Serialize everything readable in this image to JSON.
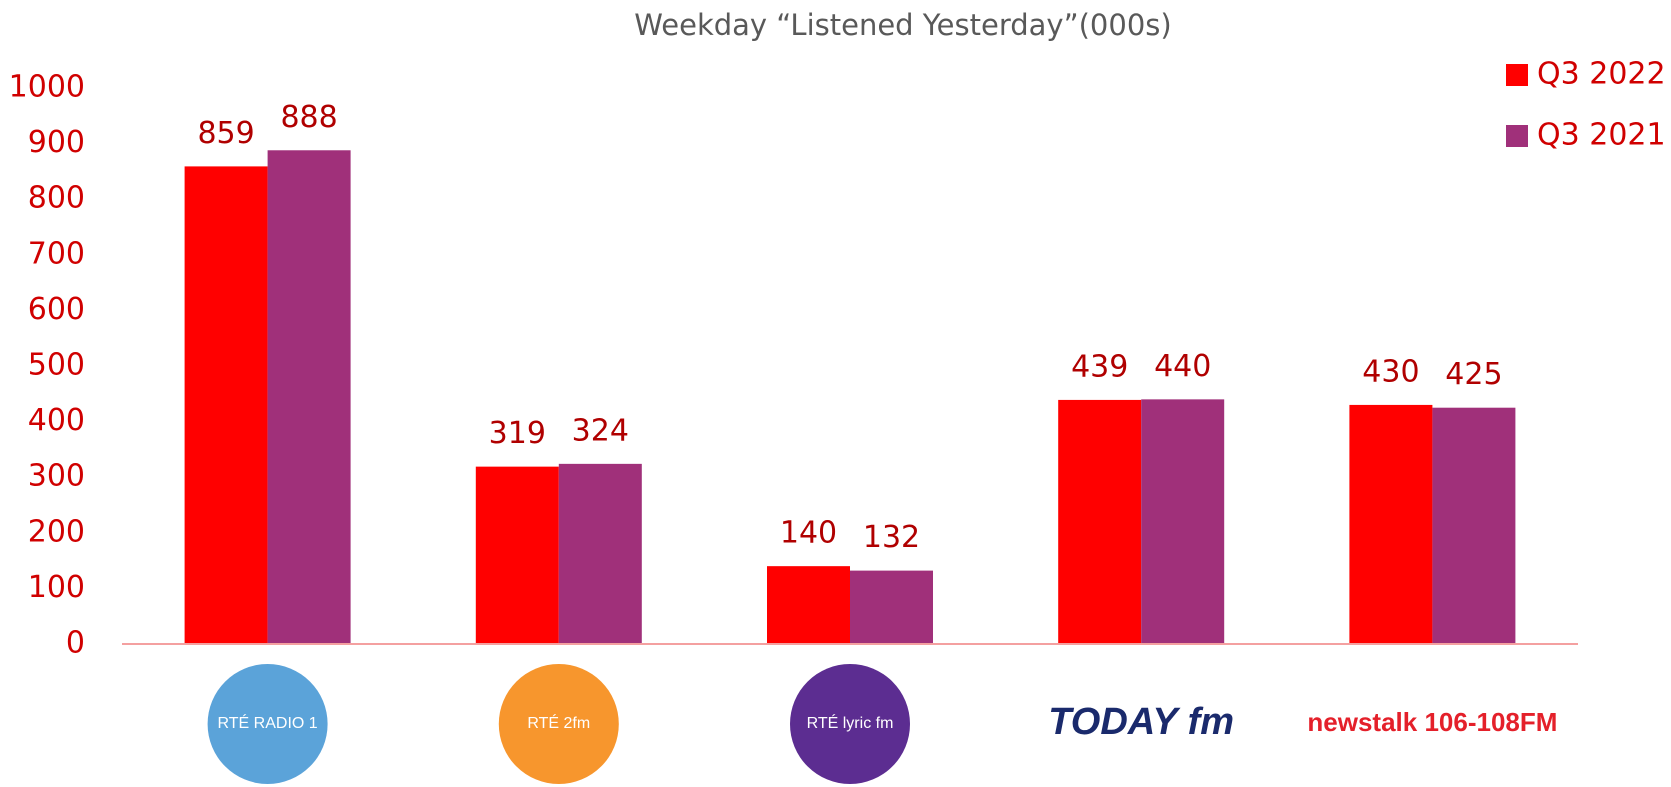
{
  "chart_data": {
    "type": "bar",
    "title": "Weekday “Listened Yesterday”(000s)",
    "categories": [
      "RTÉ RADIO 1",
      "RTÉ 2fm",
      "RTÉ lyric fm",
      "TODAY fm",
      "newstalk 106-108FM"
    ],
    "category_colors": [
      "#5ba3d9",
      "#f7962d",
      "#5c2d91",
      "#1a2a6c",
      "#e4202a"
    ],
    "series": [
      {
        "name": "Q3 2022",
        "color": "#ff0000",
        "values": [
          859,
          319,
          140,
          439,
          430
        ]
      },
      {
        "name": "Q3 2021",
        "color": "#a0307a",
        "values": [
          888,
          324,
          132,
          440,
          425
        ]
      }
    ],
    "ylim": [
      0,
      1000
    ],
    "yticks": [
      0,
      100,
      200,
      300,
      400,
      500,
      600,
      700,
      800,
      900,
      1000
    ],
    "legend": "top-right",
    "grid": false
  }
}
